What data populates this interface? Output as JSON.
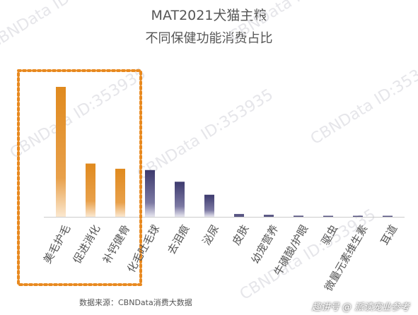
{
  "chart_data": {
    "type": "bar",
    "title": "MAT2021犬猫主粮",
    "subtitle": "不同保健功能消费占比",
    "categories": [
      "美毛护毛",
      "促进消化",
      "补钙健骨",
      "化毛吐毛球",
      "去泪痕",
      "泌尿",
      "皮肤",
      "幼宠营养",
      "牛磺酸/护眼",
      "驱虫",
      "微量元素维生素",
      "耳道"
    ],
    "values": [
      100,
      41,
      37,
      36,
      27,
      17,
      2.2,
      1.6,
      0.9,
      0.6,
      0.2,
      0.1
    ],
    "highlighted_count": 3,
    "colors": {
      "highlight": "#e08a1e",
      "normal": "#3d3a6e",
      "box": "#e8891f",
      "axis": "#cccccc"
    },
    "grid": false,
    "legend": "none"
  },
  "footer": {
    "source": "数据来源：CBNData消费大数据",
    "credit": "趣讲号 @ 派读宠业参考"
  },
  "watermark": "CBNData ID:353935"
}
